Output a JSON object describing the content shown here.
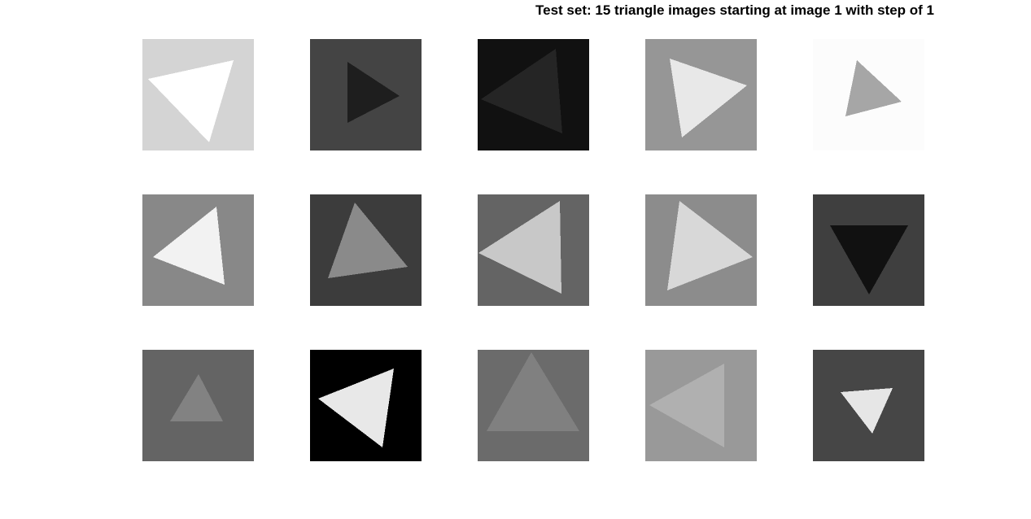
{
  "figure": {
    "title": "Test set: 15 triangle images starting at image 1 with step of 1"
  },
  "images": [
    {
      "bg": "#d4d4d4",
      "fg": "#ffffff"
    },
    {
      "bg": "#444444",
      "fg": "#1e1e1e"
    },
    {
      "bg": "#111111",
      "fg": "#252525"
    },
    {
      "bg": "#969696",
      "fg": "#e8e8e8"
    },
    {
      "bg": "#fcfcfc",
      "fg": "#a6a6a6"
    },
    {
      "bg": "#888888",
      "fg": "#f2f2f2"
    },
    {
      "bg": "#3c3c3c",
      "fg": "#8a8a8a"
    },
    {
      "bg": "#646464",
      "fg": "#c8c8c8"
    },
    {
      "bg": "#8c8c8c",
      "fg": "#d8d8d8"
    },
    {
      "bg": "#3f3f3f",
      "fg": "#111111"
    },
    {
      "bg": "#646464",
      "fg": "#828282"
    },
    {
      "bg": "#000000",
      "fg": "#e8e8e8"
    },
    {
      "bg": "#6b6b6b",
      "fg": "#808080"
    },
    {
      "bg": "#999999",
      "fg": "#b0b0b0"
    },
    {
      "bg": "#464646",
      "fg": "#e6e6e6"
    }
  ]
}
